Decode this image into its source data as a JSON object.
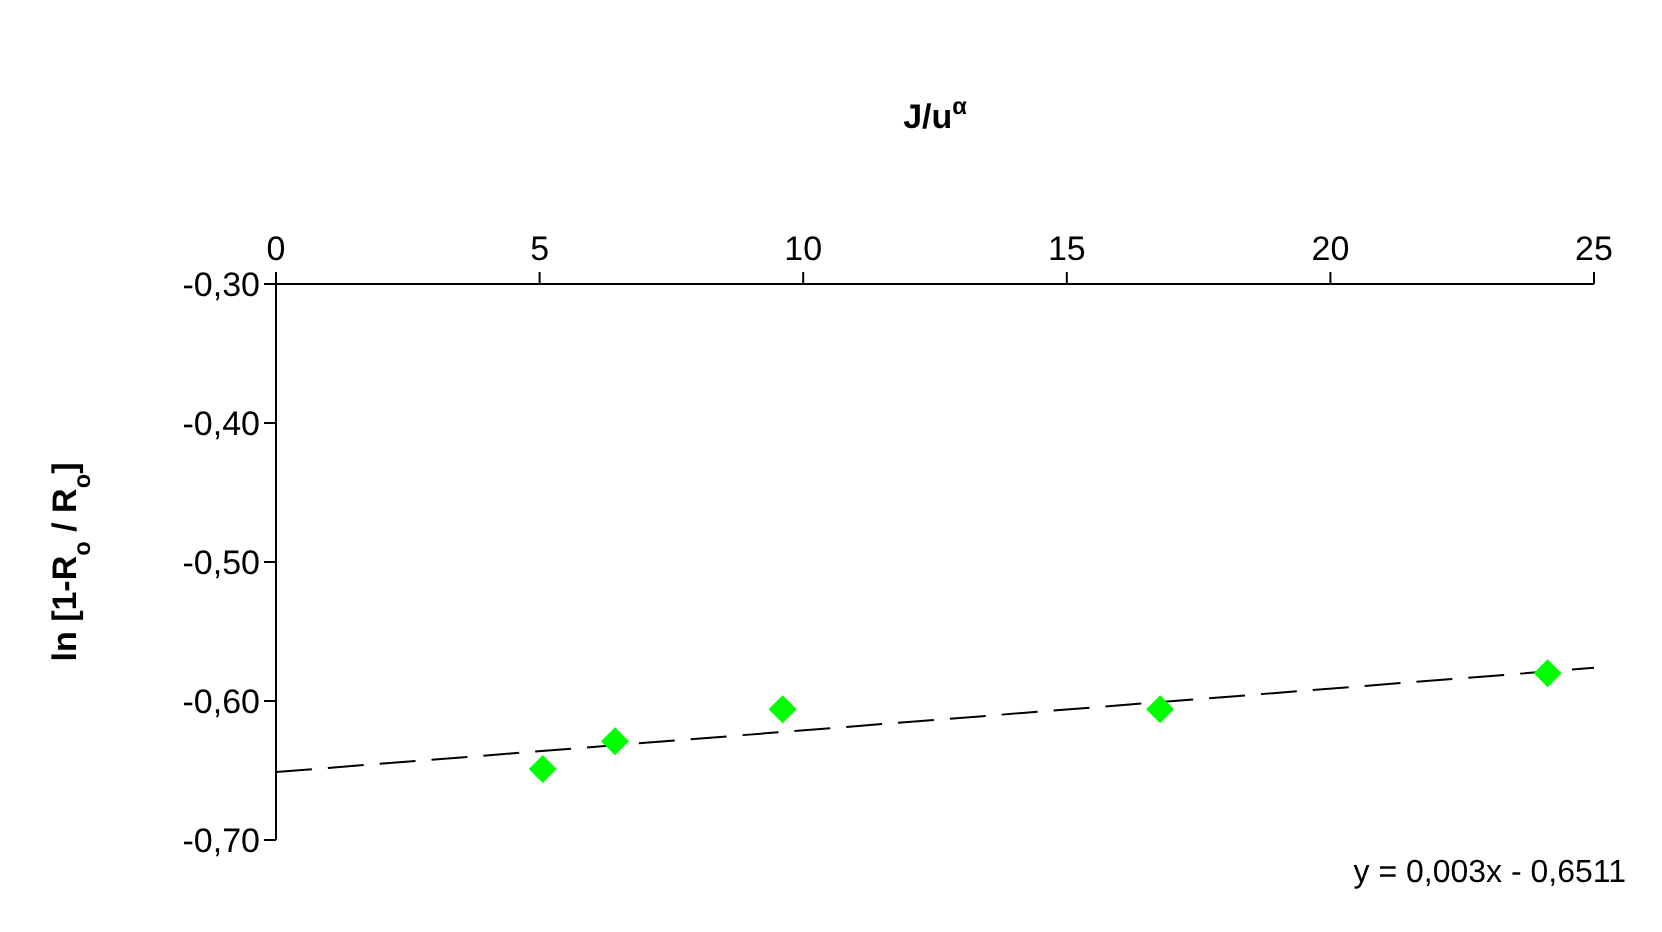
{
  "chart_data": {
    "type": "scatter",
    "xlabel": "J/u$^{α}$",
    "ylabel": "ln [1-R$_{o}$ / R$_{o}$]",
    "xlim": [
      0,
      25
    ],
    "xticks": [
      0,
      5,
      10,
      15,
      20,
      25
    ],
    "ylim": [
      -0.7,
      -0.3
    ],
    "yticks": [
      {
        "value": -0.7,
        "label": "-0,70"
      },
      {
        "value": -0.6,
        "label": "-0,60"
      },
      {
        "value": -0.5,
        "label": "-0,50"
      },
      {
        "value": -0.4,
        "label": "-0,40"
      },
      {
        "value": -0.3,
        "label": "-0,30"
      }
    ],
    "grid": false,
    "legend": false,
    "marker": "diamond",
    "series": [
      {
        "type": "scatter",
        "color": "#00ff00",
        "x": [
          5.06,
          6.43,
          9.61,
          16.77,
          24.12
        ],
        "values": [
          -0.649,
          -0.629,
          -0.606,
          -0.606,
          -0.58
        ]
      },
      {
        "type": "line",
        "color": "#000000",
        "line_style": "dashed",
        "marker": "none",
        "x": [
          0,
          25
        ],
        "values": [
          -0.6511,
          -0.5761
        ]
      }
    ],
    "annotations": [
      "y = 0,003x - 0,6511"
    ]
  }
}
